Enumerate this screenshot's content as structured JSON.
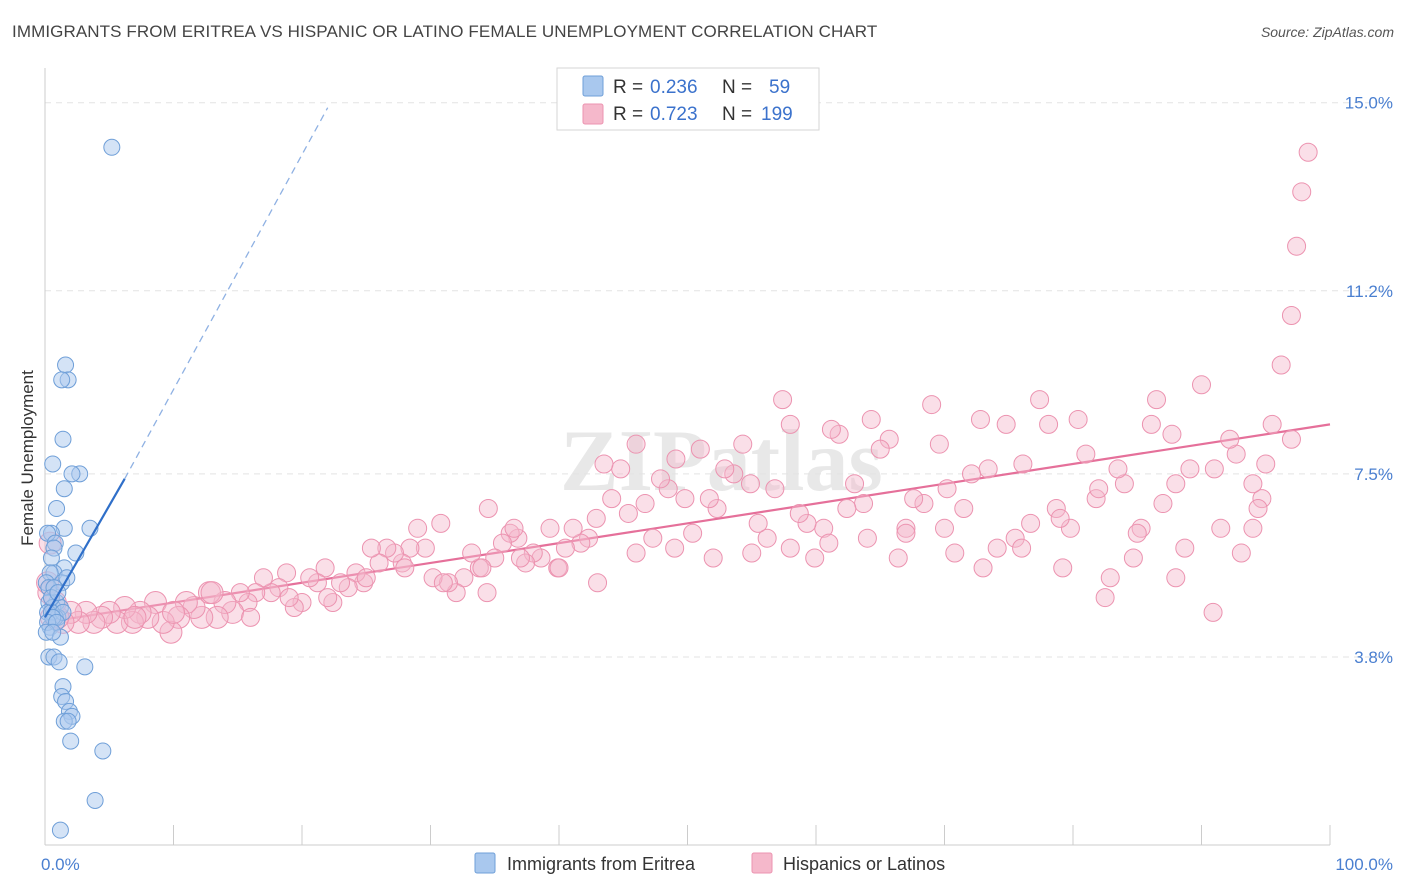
{
  "title": "IMMIGRANTS FROM ERITREA VS HISPANIC OR LATINO FEMALE UNEMPLOYMENT CORRELATION CHART",
  "source": "Source: ZipAtlas.com",
  "watermark": "ZIPatlas",
  "colors": {
    "blue_fill": "#a9c8ee",
    "blue_stroke": "#6f9fd8",
    "blue_line": "#2f6fc9",
    "pink_fill": "#f5b8cb",
    "pink_stroke": "#ec93b0",
    "pink_line": "#e5709a",
    "tick_text": "#4a7fd0",
    "grid": "#e3e3e3"
  },
  "legend_top": [
    {
      "r_label": "R =",
      "r_value": "0.236",
      "n_label": "N =",
      "n_value": "59",
      "color": "blue"
    },
    {
      "r_label": "R =",
      "r_value": "0.723",
      "n_label": "N =",
      "n_value": "199",
      "color": "pink"
    }
  ],
  "legend_bottom": [
    {
      "label": "Immigrants from Eritrea",
      "color": "blue"
    },
    {
      "label": "Hispanics or Latinos",
      "color": "pink"
    }
  ],
  "chart_data": {
    "type": "scatter",
    "title": "IMMIGRANTS FROM ERITREA VS HISPANIC OR LATINO FEMALE UNEMPLOYMENT CORRELATION CHART",
    "xlabel": "",
    "ylabel": "Female Unemployment",
    "xlim": [
      0,
      100
    ],
    "ylim": [
      0,
      15.5
    ],
    "x_tick_labels": [
      {
        "value": 0,
        "label": "0.0%"
      },
      {
        "value": 100,
        "label": "100.0%"
      }
    ],
    "y_tick_labels": [
      {
        "value": 3.8,
        "label": "3.8%"
      },
      {
        "value": 7.5,
        "label": "7.5%"
      },
      {
        "value": 11.2,
        "label": "11.2%"
      },
      {
        "value": 15.0,
        "label": "15.0%"
      }
    ],
    "y_grid": [
      3.8,
      7.5,
      11.2,
      15.0
    ],
    "series": [
      {
        "name": "Immigrants from Eritrea",
        "color": "blue",
        "R": 0.236,
        "N": 59,
        "trend": {
          "x0": 0,
          "y0": 4.6,
          "x1": 6.2,
          "y1": 7.4,
          "dash_to_x": 22,
          "dash_to_y": 14.9
        },
        "points": [
          [
            5.2,
            14.1
          ],
          [
            1.6,
            9.7
          ],
          [
            1.8,
            9.4
          ],
          [
            1.3,
            9.4
          ],
          [
            1.4,
            8.2
          ],
          [
            0.6,
            7.7
          ],
          [
            2.7,
            7.5
          ],
          [
            2.1,
            7.5
          ],
          [
            1.5,
            7.2
          ],
          [
            0.9,
            6.8
          ],
          [
            3.5,
            6.4
          ],
          [
            1.5,
            6.4
          ],
          [
            0.5,
            6.3
          ],
          [
            0.2,
            6.3
          ],
          [
            0.8,
            6.1
          ],
          [
            0.7,
            6.0
          ],
          [
            2.4,
            5.9
          ],
          [
            0.5,
            5.8
          ],
          [
            1.5,
            5.6
          ],
          [
            0.7,
            5.5
          ],
          [
            1.3,
            5.3
          ],
          [
            0.4,
            5.5
          ],
          [
            0.1,
            5.3
          ],
          [
            0.3,
            5.2
          ],
          [
            0.7,
            5.2
          ],
          [
            1.7,
            5.4
          ],
          [
            0.9,
            4.9
          ],
          [
            0.3,
            4.9
          ],
          [
            0.6,
            4.8
          ],
          [
            1.2,
            4.8
          ],
          [
            0.2,
            4.7
          ],
          [
            1.0,
            4.6
          ],
          [
            0.8,
            4.6
          ],
          [
            0.5,
            4.7
          ],
          [
            0.4,
            4.4
          ],
          [
            1.4,
            4.7
          ],
          [
            0.6,
            4.6
          ],
          [
            0.2,
            4.5
          ],
          [
            0.9,
            4.5
          ],
          [
            0.1,
            4.3
          ],
          [
            1.2,
            4.2
          ],
          [
            0.6,
            4.3
          ],
          [
            0.3,
            3.8
          ],
          [
            0.7,
            3.8
          ],
          [
            1.1,
            3.7
          ],
          [
            3.1,
            3.6
          ],
          [
            1.4,
            3.2
          ],
          [
            1.3,
            3.0
          ],
          [
            1.6,
            2.9
          ],
          [
            1.9,
            2.7
          ],
          [
            2.1,
            2.6
          ],
          [
            1.5,
            2.5
          ],
          [
            1.8,
            2.5
          ],
          [
            2.0,
            2.1
          ],
          [
            4.5,
            1.9
          ],
          [
            3.9,
            0.9
          ],
          [
            1.2,
            0.3
          ],
          [
            0.5,
            5.0
          ],
          [
            1.0,
            5.1
          ]
        ]
      },
      {
        "name": "Hispanics or Latinos",
        "color": "pink",
        "R": 0.723,
        "N": 199,
        "trend": {
          "x0": 0,
          "y0": 4.5,
          "x1": 100,
          "y1": 8.5
        },
        "points": [
          [
            98.3,
            14.0
          ],
          [
            97.8,
            13.2
          ],
          [
            97.4,
            12.1
          ],
          [
            97.0,
            10.7
          ],
          [
            96.2,
            9.7
          ],
          [
            95.5,
            8.5
          ],
          [
            95.0,
            7.7
          ],
          [
            94.7,
            7.0
          ],
          [
            94.4,
            6.8
          ],
          [
            94.0,
            6.4
          ],
          [
            93.1,
            5.9
          ],
          [
            92.7,
            7.9
          ],
          [
            92.2,
            8.2
          ],
          [
            91.5,
            6.4
          ],
          [
            90.9,
            4.7
          ],
          [
            90.0,
            9.3
          ],
          [
            89.1,
            7.6
          ],
          [
            88.7,
            6.0
          ],
          [
            88.0,
            5.4
          ],
          [
            87.7,
            8.3
          ],
          [
            87.0,
            6.9
          ],
          [
            86.5,
            9.0
          ],
          [
            86.1,
            8.5
          ],
          [
            85.3,
            6.4
          ],
          [
            84.7,
            5.8
          ],
          [
            84.0,
            7.3
          ],
          [
            83.5,
            7.6
          ],
          [
            82.9,
            5.4
          ],
          [
            82.5,
            5.0
          ],
          [
            81.8,
            7.0
          ],
          [
            81.0,
            7.9
          ],
          [
            80.4,
            8.6
          ],
          [
            79.8,
            6.4
          ],
          [
            79.2,
            5.6
          ],
          [
            78.7,
            6.8
          ],
          [
            78.1,
            8.5
          ],
          [
            77.4,
            9.0
          ],
          [
            76.7,
            6.5
          ],
          [
            76.1,
            7.7
          ],
          [
            75.5,
            6.2
          ],
          [
            74.8,
            8.5
          ],
          [
            74.1,
            6.0
          ],
          [
            73.4,
            7.6
          ],
          [
            72.8,
            8.6
          ],
          [
            72.1,
            7.5
          ],
          [
            71.5,
            6.8
          ],
          [
            70.8,
            5.9
          ],
          [
            70.2,
            7.2
          ],
          [
            69.6,
            8.1
          ],
          [
            69.0,
            8.9
          ],
          [
            68.4,
            6.9
          ],
          [
            67.6,
            7.0
          ],
          [
            67.0,
            6.4
          ],
          [
            66.4,
            5.8
          ],
          [
            65.7,
            8.2
          ],
          [
            65.0,
            8.0
          ],
          [
            64.3,
            8.6
          ],
          [
            63.7,
            6.9
          ],
          [
            63.0,
            7.3
          ],
          [
            62.4,
            6.8
          ],
          [
            61.8,
            8.3
          ],
          [
            61.2,
            8.4
          ],
          [
            60.6,
            6.4
          ],
          [
            59.9,
            5.8
          ],
          [
            59.3,
            6.5
          ],
          [
            58.7,
            6.7
          ],
          [
            58.0,
            8.5
          ],
          [
            57.4,
            9.0
          ],
          [
            56.8,
            7.2
          ],
          [
            56.2,
            6.2
          ],
          [
            55.5,
            6.5
          ],
          [
            54.9,
            7.3
          ],
          [
            54.3,
            8.1
          ],
          [
            53.6,
            7.5
          ],
          [
            52.9,
            7.6
          ],
          [
            52.3,
            6.8
          ],
          [
            51.7,
            7.0
          ],
          [
            51.0,
            8.0
          ],
          [
            50.4,
            6.3
          ],
          [
            49.8,
            7.0
          ],
          [
            49.1,
            7.8
          ],
          [
            48.5,
            7.2
          ],
          [
            47.9,
            7.4
          ],
          [
            47.3,
            6.2
          ],
          [
            46.7,
            6.9
          ],
          [
            46.0,
            8.1
          ],
          [
            45.4,
            6.7
          ],
          [
            44.8,
            7.6
          ],
          [
            44.1,
            7.0
          ],
          [
            43.5,
            7.7
          ],
          [
            42.9,
            6.6
          ],
          [
            42.3,
            6.2
          ],
          [
            41.7,
            6.1
          ],
          [
            41.1,
            6.4
          ],
          [
            40.5,
            6.0
          ],
          [
            39.9,
            5.6
          ],
          [
            39.3,
            6.4
          ],
          [
            38.6,
            5.8
          ],
          [
            38.0,
            5.9
          ],
          [
            37.4,
            5.7
          ],
          [
            36.8,
            6.2
          ],
          [
            36.2,
            6.3
          ],
          [
            35.6,
            6.1
          ],
          [
            35.0,
            5.8
          ],
          [
            34.4,
            5.1
          ],
          [
            33.8,
            5.6
          ],
          [
            33.2,
            5.9
          ],
          [
            32.6,
            5.4
          ],
          [
            32.0,
            5.1
          ],
          [
            31.4,
            5.3
          ],
          [
            30.8,
            6.5
          ],
          [
            30.2,
            5.4
          ],
          [
            29.6,
            6.0
          ],
          [
            29.0,
            6.4
          ],
          [
            28.4,
            6.0
          ],
          [
            27.8,
            5.7
          ],
          [
            27.2,
            5.9
          ],
          [
            26.6,
            6.0
          ],
          [
            26.0,
            5.7
          ],
          [
            25.4,
            6.0
          ],
          [
            24.8,
            5.3
          ],
          [
            24.2,
            5.5
          ],
          [
            23.6,
            5.2
          ],
          [
            23.0,
            5.3
          ],
          [
            22.4,
            4.9
          ],
          [
            21.8,
            5.6
          ],
          [
            21.2,
            5.3
          ],
          [
            20.6,
            5.4
          ],
          [
            20.0,
            4.9
          ],
          [
            19.4,
            4.8
          ],
          [
            18.8,
            5.5
          ],
          [
            18.2,
            5.2
          ],
          [
            17.6,
            5.1
          ],
          [
            17.0,
            5.4
          ],
          [
            16.4,
            5.1
          ],
          [
            15.8,
            4.9
          ],
          [
            15.2,
            5.1
          ],
          [
            14.6,
            4.7
          ],
          [
            14.0,
            4.9
          ],
          [
            13.4,
            4.6
          ],
          [
            12.8,
            5.1
          ],
          [
            12.2,
            4.6
          ],
          [
            11.6,
            4.8
          ],
          [
            11.0,
            4.9
          ],
          [
            10.4,
            4.6
          ],
          [
            9.8,
            4.3
          ],
          [
            9.2,
            4.5
          ],
          [
            8.6,
            4.9
          ],
          [
            8.0,
            4.6
          ],
          [
            7.4,
            4.7
          ],
          [
            6.8,
            4.5
          ],
          [
            6.2,
            4.8
          ],
          [
            5.6,
            4.5
          ],
          [
            5.0,
            4.7
          ],
          [
            4.4,
            4.6
          ],
          [
            3.8,
            4.5
          ],
          [
            3.2,
            4.7
          ],
          [
            2.6,
            4.5
          ],
          [
            2.0,
            4.7
          ],
          [
            1.4,
            4.5
          ],
          [
            1.0,
            4.6
          ],
          [
            0.8,
            4.9
          ],
          [
            0.5,
            4.6
          ],
          [
            0.3,
            5.1
          ],
          [
            0.2,
            5.3
          ],
          [
            0.4,
            6.1
          ],
          [
            7.0,
            4.6
          ],
          [
            10.0,
            4.7
          ],
          [
            13.0,
            5.1
          ],
          [
            16.0,
            4.6
          ],
          [
            19.0,
            5.0
          ],
          [
            22.0,
            5.0
          ],
          [
            25.0,
            5.4
          ],
          [
            28.0,
            5.6
          ],
          [
            31.0,
            5.3
          ],
          [
            34.0,
            5.6
          ],
          [
            37.0,
            5.8
          ],
          [
            40.0,
            5.6
          ],
          [
            43.0,
            5.3
          ],
          [
            46.0,
            5.9
          ],
          [
            49.0,
            6.0
          ],
          [
            52.0,
            5.8
          ],
          [
            55.0,
            5.9
          ],
          [
            58.0,
            6.0
          ],
          [
            61.0,
            6.1
          ],
          [
            64.0,
            6.2
          ],
          [
            67.0,
            6.3
          ],
          [
            70.0,
            6.4
          ],
          [
            73.0,
            5.6
          ],
          [
            76.0,
            6.0
          ],
          [
            79.0,
            6.6
          ],
          [
            82.0,
            7.2
          ],
          [
            85.0,
            6.3
          ],
          [
            88.0,
            7.3
          ],
          [
            91.0,
            7.6
          ],
          [
            94.0,
            7.3
          ],
          [
            97.0,
            8.2
          ],
          [
            34.5,
            6.8
          ],
          [
            36.5,
            6.4
          ]
        ]
      }
    ]
  }
}
